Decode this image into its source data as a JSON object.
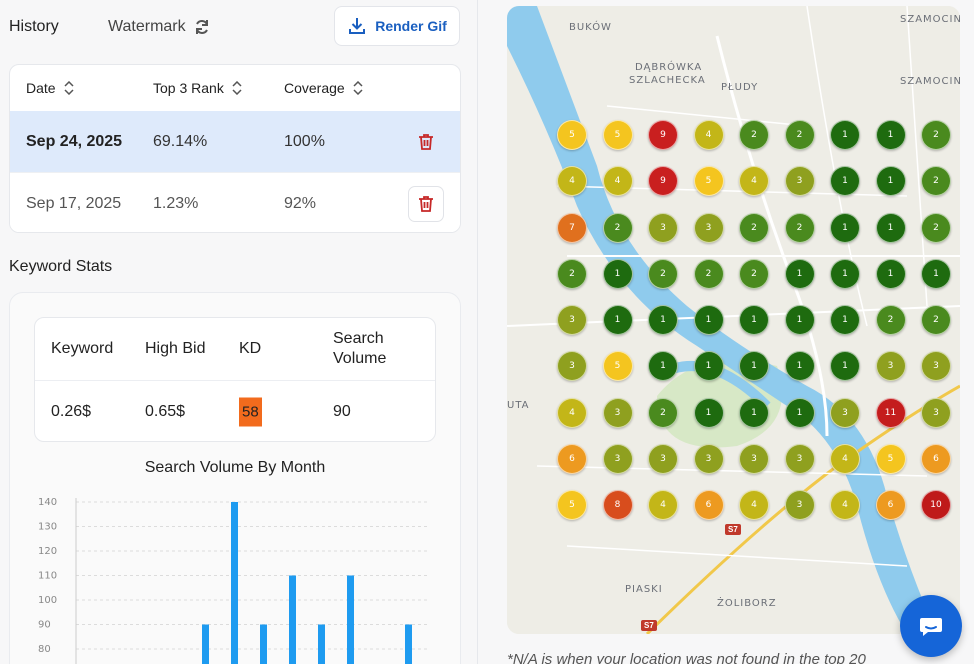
{
  "header": {
    "history_label": "History",
    "watermark_label": "Watermark",
    "render_label": "Render Gif"
  },
  "history_table": {
    "columns": [
      "Date",
      "Top 3 Rank",
      "Coverage"
    ],
    "rows": [
      {
        "date": "Sep 24, 2025",
        "top3": "69.14%",
        "coverage": "100%",
        "selected": true
      },
      {
        "date": "Sep 17, 2025",
        "top3": "1.23%",
        "coverage": "92%",
        "selected": false
      }
    ]
  },
  "keyword_stats": {
    "title": "Keyword Stats",
    "columns": [
      "Keyword",
      "High Bid",
      "KD",
      "Search Volume"
    ],
    "row": {
      "keyword": "0.26$",
      "high_bid": "0.65$",
      "kd": "58",
      "search_volume": "90"
    },
    "kd_color": "#f26b1d"
  },
  "chart_data": {
    "type": "bar",
    "title": "Search Volume By Month",
    "ylim": [
      80,
      140
    ],
    "yticks": [
      "140",
      "130",
      "120",
      "110",
      "100",
      "90",
      "80"
    ],
    "values": [
      90,
      140,
      90,
      110,
      90,
      110,
      90
    ],
    "bar_color": "#1e9bf0",
    "grid": true
  },
  "map": {
    "labels": [
      "BUKÓW",
      "DĄBRÓWKA",
      "SZLACHECKA",
      "PŁUDY",
      "SZAMOCIN",
      "SZAMOCIN",
      "UTA",
      "PIASKI",
      "ŻOLIBORZ"
    ],
    "road_badges": [
      "S7",
      "S7"
    ],
    "grid_rows": [
      [
        "5",
        "5",
        "9",
        "4",
        "2",
        "2",
        "1",
        "1",
        "2"
      ],
      [
        "4",
        "4",
        "9",
        "5",
        "4",
        "3",
        "1",
        "1",
        "2"
      ],
      [
        "7",
        "2",
        "3",
        "3",
        "2",
        "2",
        "1",
        "1",
        "2"
      ],
      [
        "2",
        "1",
        "2",
        "2",
        "2",
        "1",
        "1",
        "1",
        "1"
      ],
      [
        "3",
        "1",
        "1",
        "1",
        "1",
        "1",
        "1",
        "2",
        "2"
      ],
      [
        "3",
        "5",
        "1",
        "1",
        "1",
        "1",
        "1",
        "3",
        "3"
      ],
      [
        "4",
        "3",
        "2",
        "1",
        "1",
        "1",
        "3",
        "11",
        "3"
      ],
      [
        "6",
        "3",
        "3",
        "3",
        "3",
        "3",
        "4",
        "5",
        "6"
      ],
      [
        "5",
        "8",
        "4",
        "6",
        "4",
        "3",
        "4",
        "6",
        "10"
      ]
    ],
    "rank_colors": {
      "1": "#1e6b0f",
      "2": "#4a8a1e",
      "3": "#8fa01f",
      "4": "#c3b618",
      "5": "#f4c51f",
      "6": "#ed9a20",
      "7": "#e0701e",
      "8": "#d84d1d",
      "9": "#c91f1f",
      "10": "#bf1a1a",
      "11": "#c41d1d"
    }
  },
  "footnote": "*N/A is when your location was not found in the top 20"
}
